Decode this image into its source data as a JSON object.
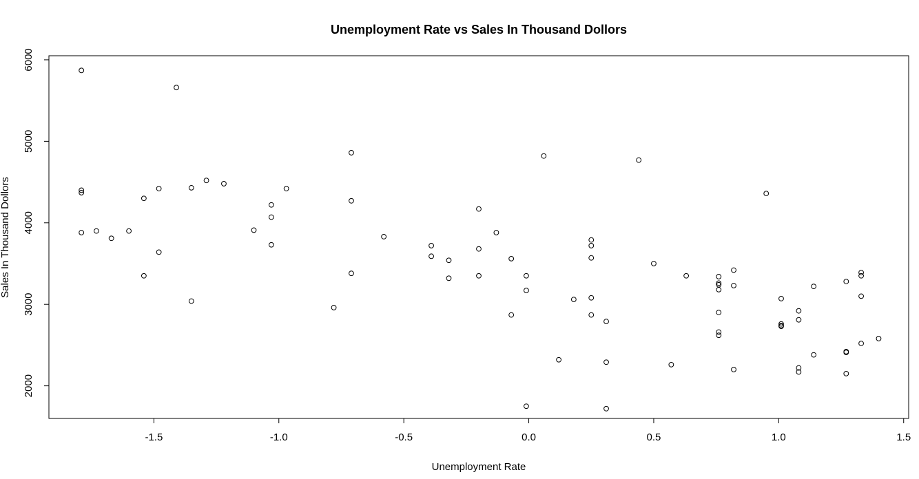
{
  "chart_data": {
    "type": "scatter",
    "title": "Unemployment Rate vs Sales In Thousand Dollors",
    "xlabel": "Unemployment Rate",
    "ylabel": "Sales In Thousand Dollors",
    "xlim": [
      -1.92,
      1.52
    ],
    "ylim": [
      1600,
      6050
    ],
    "x_ticks": [
      -1.5,
      -1.0,
      -0.5,
      0.0,
      0.5,
      1.0,
      1.5
    ],
    "x_tick_labels": [
      "-1.5",
      "-1.0",
      "-0.5",
      "0.0",
      "0.5",
      "1.0",
      "1.5"
    ],
    "y_ticks": [
      2000,
      3000,
      4000,
      5000,
      6000
    ],
    "y_tick_labels": [
      "2000",
      "3000",
      "4000",
      "5000",
      "6000"
    ],
    "grid": false,
    "points": [
      [
        -1.79,
        5870
      ],
      [
        -1.41,
        5660
      ],
      [
        -1.79,
        4400
      ],
      [
        -1.79,
        4370
      ],
      [
        -1.79,
        3880
      ],
      [
        -1.73,
        3900
      ],
      [
        -1.67,
        3810
      ],
      [
        -1.6,
        3900
      ],
      [
        -1.54,
        4300
      ],
      [
        -1.54,
        3350
      ],
      [
        -1.48,
        4420
      ],
      [
        -1.48,
        3640
      ],
      [
        -1.35,
        4430
      ],
      [
        -1.35,
        3040
      ],
      [
        -1.29,
        4520
      ],
      [
        -1.22,
        4480
      ],
      [
        -1.1,
        3910
      ],
      [
        -1.03,
        4220
      ],
      [
        -1.03,
        4070
      ],
      [
        -1.03,
        3730
      ],
      [
        -0.97,
        4420
      ],
      [
        -0.78,
        2960
      ],
      [
        -0.71,
        4860
      ],
      [
        -0.71,
        4270
      ],
      [
        -0.71,
        3380
      ],
      [
        -0.58,
        3830
      ],
      [
        -0.39,
        3720
      ],
      [
        -0.39,
        3590
      ],
      [
        -0.32,
        3540
      ],
      [
        -0.32,
        3320
      ],
      [
        -0.2,
        4170
      ],
      [
        -0.2,
        3680
      ],
      [
        -0.2,
        3350
      ],
      [
        -0.13,
        3880
      ],
      [
        -0.07,
        3560
      ],
      [
        -0.07,
        2870
      ],
      [
        -0.01,
        3350
      ],
      [
        -0.01,
        3170
      ],
      [
        -0.01,
        1750
      ],
      [
        0.06,
        4820
      ],
      [
        0.12,
        2320
      ],
      [
        0.18,
        3060
      ],
      [
        0.25,
        3790
      ],
      [
        0.25,
        3720
      ],
      [
        0.25,
        3570
      ],
      [
        0.25,
        3080
      ],
      [
        0.25,
        2870
      ],
      [
        0.31,
        2790
      ],
      [
        0.31,
        2290
      ],
      [
        0.31,
        1720
      ],
      [
        0.44,
        4770
      ],
      [
        0.5,
        3500
      ],
      [
        0.57,
        2260
      ],
      [
        0.63,
        3350
      ],
      [
        0.76,
        3340
      ],
      [
        0.76,
        3260
      ],
      [
        0.76,
        3240
      ],
      [
        0.76,
        3180
      ],
      [
        0.76,
        2900
      ],
      [
        0.76,
        2660
      ],
      [
        0.76,
        2620
      ],
      [
        0.82,
        3420
      ],
      [
        0.82,
        3230
      ],
      [
        0.82,
        2200
      ],
      [
        0.95,
        4360
      ],
      [
        1.01,
        3070
      ],
      [
        1.01,
        2760
      ],
      [
        1.01,
        2740
      ],
      [
        1.01,
        2730
      ],
      [
        1.08,
        2920
      ],
      [
        1.08,
        2810
      ],
      [
        1.08,
        2220
      ],
      [
        1.08,
        2170
      ],
      [
        1.14,
        3220
      ],
      [
        1.14,
        2380
      ],
      [
        1.27,
        3280
      ],
      [
        1.27,
        2420
      ],
      [
        1.27,
        2410
      ],
      [
        1.27,
        2150
      ],
      [
        1.33,
        3390
      ],
      [
        1.33,
        3350
      ],
      [
        1.33,
        3100
      ],
      [
        1.33,
        2520
      ],
      [
        1.4,
        2580
      ]
    ]
  }
}
